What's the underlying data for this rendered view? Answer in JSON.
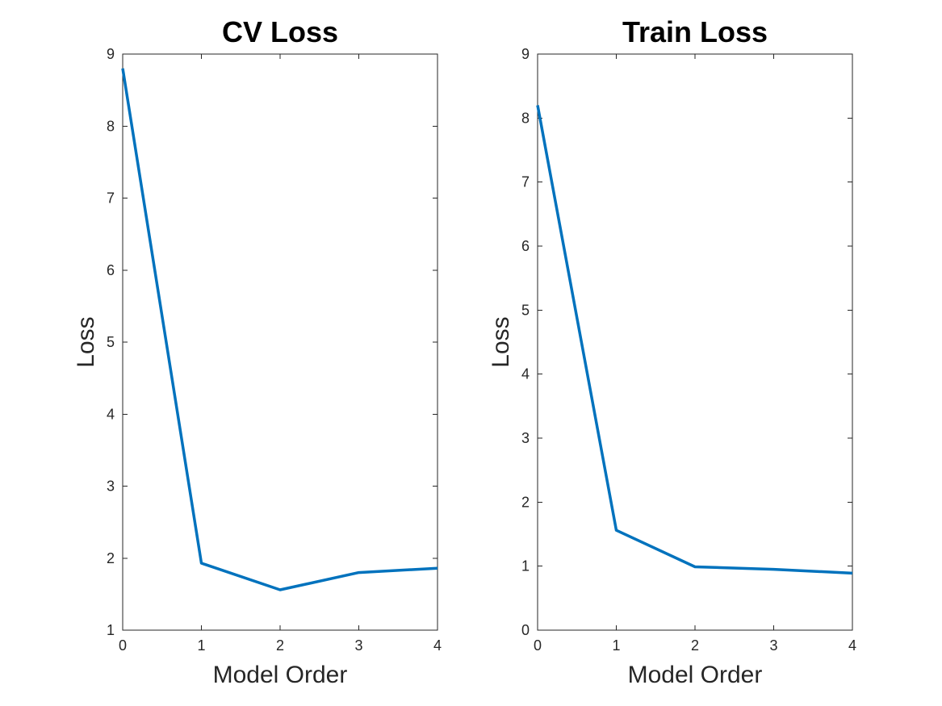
{
  "chart_data": [
    {
      "type": "line",
      "title": "CV Loss",
      "xlabel": "Model Order",
      "ylabel": "Loss",
      "xlim": [
        0,
        4
      ],
      "ylim": [
        1,
        9
      ],
      "xticks": [
        0,
        1,
        2,
        3,
        4
      ],
      "yticks": [
        1,
        2,
        3,
        4,
        5,
        6,
        7,
        8,
        9
      ],
      "grid": false,
      "series": [
        {
          "x": [
            0,
            1,
            2,
            3,
            4
          ],
          "values": [
            8.8,
            1.93,
            1.56,
            1.8,
            1.86
          ],
          "color": "#0072bd"
        }
      ]
    },
    {
      "type": "line",
      "title": "Train Loss",
      "xlabel": "Model Order",
      "ylabel": "Loss",
      "xlim": [
        0,
        4
      ],
      "ylim": [
        0,
        9
      ],
      "xticks": [
        0,
        1,
        2,
        3,
        4
      ],
      "yticks": [
        0,
        1,
        2,
        3,
        4,
        5,
        6,
        7,
        8,
        9
      ],
      "grid": false,
      "series": [
        {
          "x": [
            0,
            1,
            2,
            3,
            4
          ],
          "values": [
            8.2,
            1.56,
            0.99,
            0.95,
            0.89
          ],
          "color": "#0072bd"
        }
      ]
    }
  ]
}
